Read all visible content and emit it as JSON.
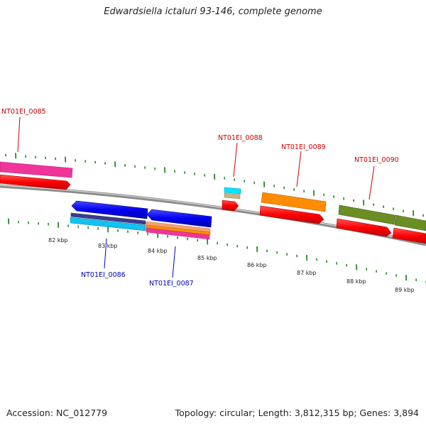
{
  "title": "Edwardsiella ictaluri 93-146, complete genome",
  "footer": {
    "accession": "Accession: NC_012779",
    "summary": "Topology: circular; Length: 3,812,315 bp; Genes: 3,894"
  },
  "scale_labels": [
    "82 kbp",
    "83 kbp",
    "84 kbp",
    "85 kbp",
    "86 kbp",
    "87 kbp",
    "88 kbp",
    "89 kbp"
  ],
  "genes_top": [
    "NT01EI_0085",
    "NT01EI_0088",
    "NT01EI_0089",
    "NT01EI_0090"
  ],
  "genes_bottom": [
    "NT01EI_0086",
    "NT01EI_0087"
  ],
  "colors": {
    "top_label": "#cc0000",
    "bottom_label": "#0000bb",
    "backbone": "#8c8c8c",
    "tick": "#228b22",
    "red": "#ff0000",
    "magenta": "#f0359a",
    "blue": "#0000f0",
    "orange": "#ff8c00",
    "olive": "#6b8e23",
    "cyan": "#00e5ff"
  }
}
